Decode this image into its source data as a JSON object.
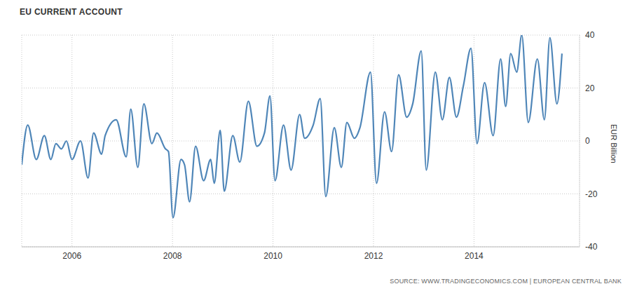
{
  "chart_data": {
    "type": "line",
    "title": "EU CURRENT ACCOUNT",
    "y_label": "EUR Billion",
    "source": "SOURCE: WWW.TRADINGECONOMICS.COM | EUROPEAN CENTRAL BANK",
    "color": "#4f86b8",
    "grid": true,
    "xlim": [
      2005,
      2016.1
    ],
    "xticks": [
      2006,
      2008,
      2010,
      2012,
      2014
    ],
    "ylim": [
      -40,
      40
    ],
    "yticks": [
      -40,
      -20,
      0,
      20,
      40
    ],
    "x": [
      2005.0,
      2005.12,
      2005.29,
      2005.45,
      2005.58,
      2005.68,
      2005.79,
      2005.89,
      2006.0,
      2006.17,
      2006.32,
      2006.43,
      2006.59,
      2006.66,
      2006.88,
      2007.08,
      2007.17,
      2007.31,
      2007.43,
      2007.59,
      2007.69,
      2007.86,
      2007.92,
      2008.01,
      2008.17,
      2008.24,
      2008.34,
      2008.46,
      2008.62,
      2008.76,
      2008.83,
      2008.95,
      2009.03,
      2009.2,
      2009.34,
      2009.51,
      2009.68,
      2009.83,
      2009.94,
      2010.04,
      2010.21,
      2010.36,
      2010.53,
      2010.63,
      2010.8,
      2010.94,
      2011.05,
      2011.22,
      2011.36,
      2011.47,
      2011.62,
      2011.73,
      2011.94,
      2012.06,
      2012.22,
      2012.36,
      2012.5,
      2012.66,
      2012.78,
      2012.95,
      2013.05,
      2013.23,
      2013.37,
      2013.51,
      2013.65,
      2013.79,
      2013.94,
      2014.06,
      2014.21,
      2014.38,
      2014.53,
      2014.63,
      2014.73,
      2014.85,
      2014.95,
      2015.08,
      2015.26,
      2015.4,
      2015.51,
      2015.65,
      2015.75
    ],
    "values": [
      -9,
      6,
      -7,
      2,
      -7,
      -1,
      -3,
      0,
      -7,
      0,
      -14,
      3,
      -5,
      2,
      8,
      -6,
      12,
      -10,
      14,
      -1,
      3,
      -3,
      -4,
      -29,
      -7,
      -9,
      -23,
      -2,
      -15,
      -7,
      -16,
      4,
      -19,
      2,
      -8,
      15,
      -2,
      3,
      17,
      -15,
      6,
      -11,
      10,
      1,
      6,
      16,
      -21,
      5,
      -10,
      7,
      1,
      5,
      26,
      -16,
      11,
      -4,
      25,
      9,
      14,
      34,
      -11,
      26,
      8,
      24,
      9,
      21,
      35,
      -1,
      22,
      2,
      31,
      13,
      33,
      26,
      40,
      7,
      31,
      8,
      39,
      14,
      33
    ]
  }
}
